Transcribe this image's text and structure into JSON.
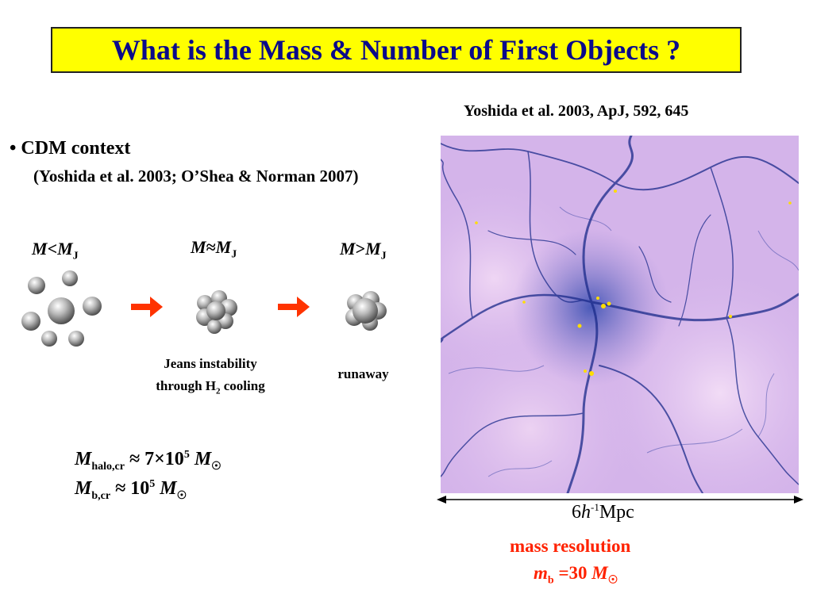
{
  "title": "What is the Mass & Number of First Objects ?",
  "citation": "Yoshida et al.  2003, ApJ, 592, 645",
  "bullet": {
    "symbol": "•",
    "heading": "CDM context",
    "reference": "(Yoshida et al. 2003; O’Shea & Norman 2007)"
  },
  "stages": [
    {
      "mass": "M",
      "relation": "<",
      "jeans": "M",
      "jeans_sub": "J"
    },
    {
      "mass": "M",
      "relation": "≈",
      "jeans": "M",
      "jeans_sub": "J"
    },
    {
      "mass": "M",
      "relation": ">",
      "jeans": "M",
      "jeans_sub": "J"
    }
  ],
  "captions": {
    "jeans_line1": "Jeans instability",
    "jeans_line2_pre": "through H",
    "jeans_line2_sub": "2",
    "jeans_line2_post": " cooling",
    "runaway": "runaway"
  },
  "formulas": {
    "halo": {
      "sym": "M",
      "sub": "halo,cr",
      "approx": " ≈ 7×10",
      "exp": "5",
      "unit": "M",
      "sun": "☉"
    },
    "baryon": {
      "sym": "M",
      "sub": "b,cr",
      "approx": " ≈ 10",
      "exp": "5",
      "unit": "M",
      "sun": "☉"
    }
  },
  "scale": {
    "pre": "6",
    "h": "h",
    "exp": "-1",
    "unit": "Mpc"
  },
  "resolution": {
    "label": "mass resolution",
    "sym": "m",
    "sub": "b",
    "eq": " =30 ",
    "unit": "M",
    "sun": "☉"
  },
  "colors": {
    "title_bg": "#ffff00",
    "title_text": "#0a0a8a",
    "arrow": "#ff3300",
    "resolution_text": "#ff2200",
    "sim_bg": "#d8b8ec",
    "filament": "#1a2a8a"
  }
}
